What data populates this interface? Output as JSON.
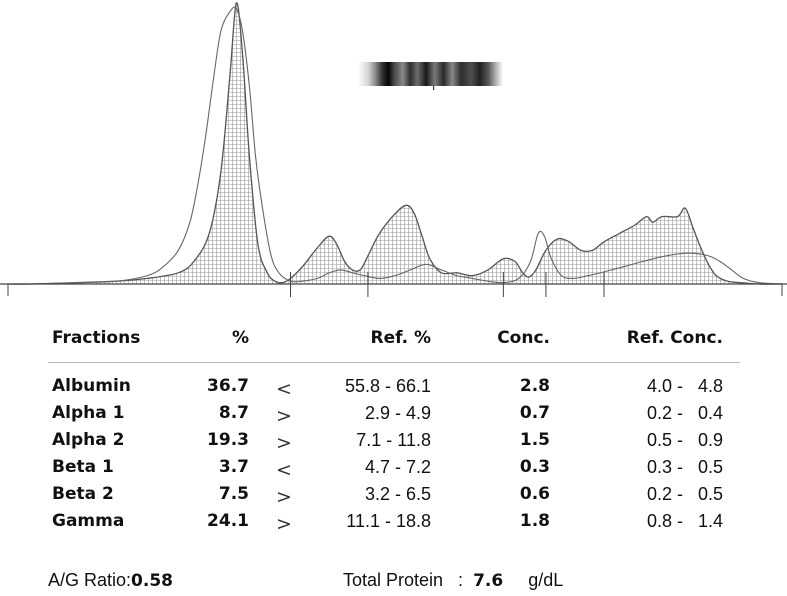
{
  "table": {
    "headers": {
      "fraction": "Fractions",
      "percent": "%",
      "ref_percent": "Ref. %",
      "conc": "Conc.",
      "ref_conc": "Ref. Conc."
    },
    "rows": [
      {
        "name": "Albumin",
        "percent": "36.7",
        "flag": "<",
        "ref_percent": "55.8 - 66.1",
        "conc": "2.8",
        "ref_conc": "4.0 -   4.8"
      },
      {
        "name": "Alpha 1",
        "percent": "8.7",
        "flag": ">",
        "ref_percent": "2.9 -  4.9",
        "conc": "0.7",
        "ref_conc": "0.2 -   0.4"
      },
      {
        "name": "Alpha 2",
        "percent": "19.3",
        "flag": ">",
        "ref_percent": "7.1 - 11.8",
        "conc": "1.5",
        "ref_conc": "0.5 -   0.9"
      },
      {
        "name": "Beta 1",
        "percent": "3.7",
        "flag": "<",
        "ref_percent": "4.7 -  7.2",
        "conc": "0.3",
        "ref_conc": "0.3 -   0.5"
      },
      {
        "name": "Beta 2",
        "percent": "7.5",
        "flag": ">",
        "ref_percent": "3.2 -  6.5",
        "conc": "0.6",
        "ref_conc": "0.2 -   0.5"
      },
      {
        "name": "Gamma",
        "percent": "24.1",
        "flag": ">",
        "ref_percent": "11.1 - 18.8",
        "conc": "1.8",
        "ref_conc": "0.8 -   1.4"
      }
    ]
  },
  "footer": {
    "ag_label": "A/G Ratio:",
    "ag_value": "0.58",
    "tp_label": "Total Protein   :",
    "tp_value": "7.6",
    "tp_unit": "g/dL"
  },
  "chart_data": {
    "type": "area",
    "title": "",
    "xlabel": "",
    "ylabel": "",
    "xlim": [
      0,
      100
    ],
    "ylim": [
      0,
      100
    ],
    "grid": false,
    "fill_pattern": "dotted-grid",
    "fraction_boundaries": [
      36.5,
      46.5,
      64.0,
      69.5,
      77.0
    ],
    "series": [
      {
        "role": "patient",
        "x": [
          0,
          3,
          8,
          14,
          18,
          22,
          24,
          26,
          27.5,
          28.7,
          29.5,
          30.3,
          31.2,
          32.3,
          33.5,
          34.5,
          35.5,
          36.5,
          38,
          40,
          41.5,
          42.5,
          43.5,
          44.5,
          45.5,
          46.5,
          48,
          50,
          51.5,
          52.5,
          53.5,
          54.5,
          56,
          58,
          60,
          62,
          64,
          65.5,
          66.5,
          67.3,
          68.2,
          69.5,
          71,
          72.5,
          74,
          75.5,
          77,
          79,
          81,
          82.5,
          83.3,
          84.5,
          86.5,
          87.5,
          88.5,
          89.5,
          90.5,
          91.5,
          93,
          95,
          97,
          100
        ],
        "y": [
          0,
          0,
          0.4,
          1,
          2,
          4,
          8,
          18,
          40,
          75,
          100,
          82,
          45,
          14,
          4,
          1,
          0.5,
          2,
          6,
          13,
          17,
          14,
          8,
          5,
          5,
          10,
          18,
          25,
          28,
          25,
          17,
          9,
          4,
          4,
          3,
          5,
          9,
          8,
          4,
          2.5,
          5,
          12,
          16,
          15,
          12,
          12,
          15,
          18,
          21,
          24,
          22,
          24,
          24,
          27,
          20,
          13,
          7,
          3,
          1,
          0.4,
          0,
          0
        ]
      },
      {
        "role": "reference",
        "x": [
          0,
          3,
          8,
          14,
          18,
          20,
          22,
          23.5,
          24.5,
          25.5,
          26.5,
          27.5,
          28.7,
          29.5,
          30.3,
          31.2,
          32,
          33,
          34,
          35,
          36.5,
          38,
          40,
          41.5,
          43,
          44.5,
          46,
          48,
          50,
          52,
          54,
          56,
          58,
          60,
          62,
          64,
          66,
          67.5,
          68.5,
          69.3,
          70.2,
          71.5,
          73,
          75,
          78,
          82,
          85,
          88,
          90.5,
          92,
          93.5,
          95,
          97,
          100
        ],
        "y": [
          0,
          0,
          0.4,
          1,
          3,
          6,
          12,
          22,
          35,
          52,
          72,
          90,
          97,
          98,
          90,
          70,
          45,
          25,
          10,
          4,
          1,
          1,
          2,
          4,
          5,
          4,
          3,
          2,
          3,
          5,
          7,
          5,
          3,
          2,
          1,
          0.5,
          2,
          8,
          18,
          17,
          9,
          3,
          2,
          3,
          5,
          8,
          10,
          11,
          10,
          8,
          5,
          2,
          0.5,
          0
        ]
      }
    ]
  }
}
